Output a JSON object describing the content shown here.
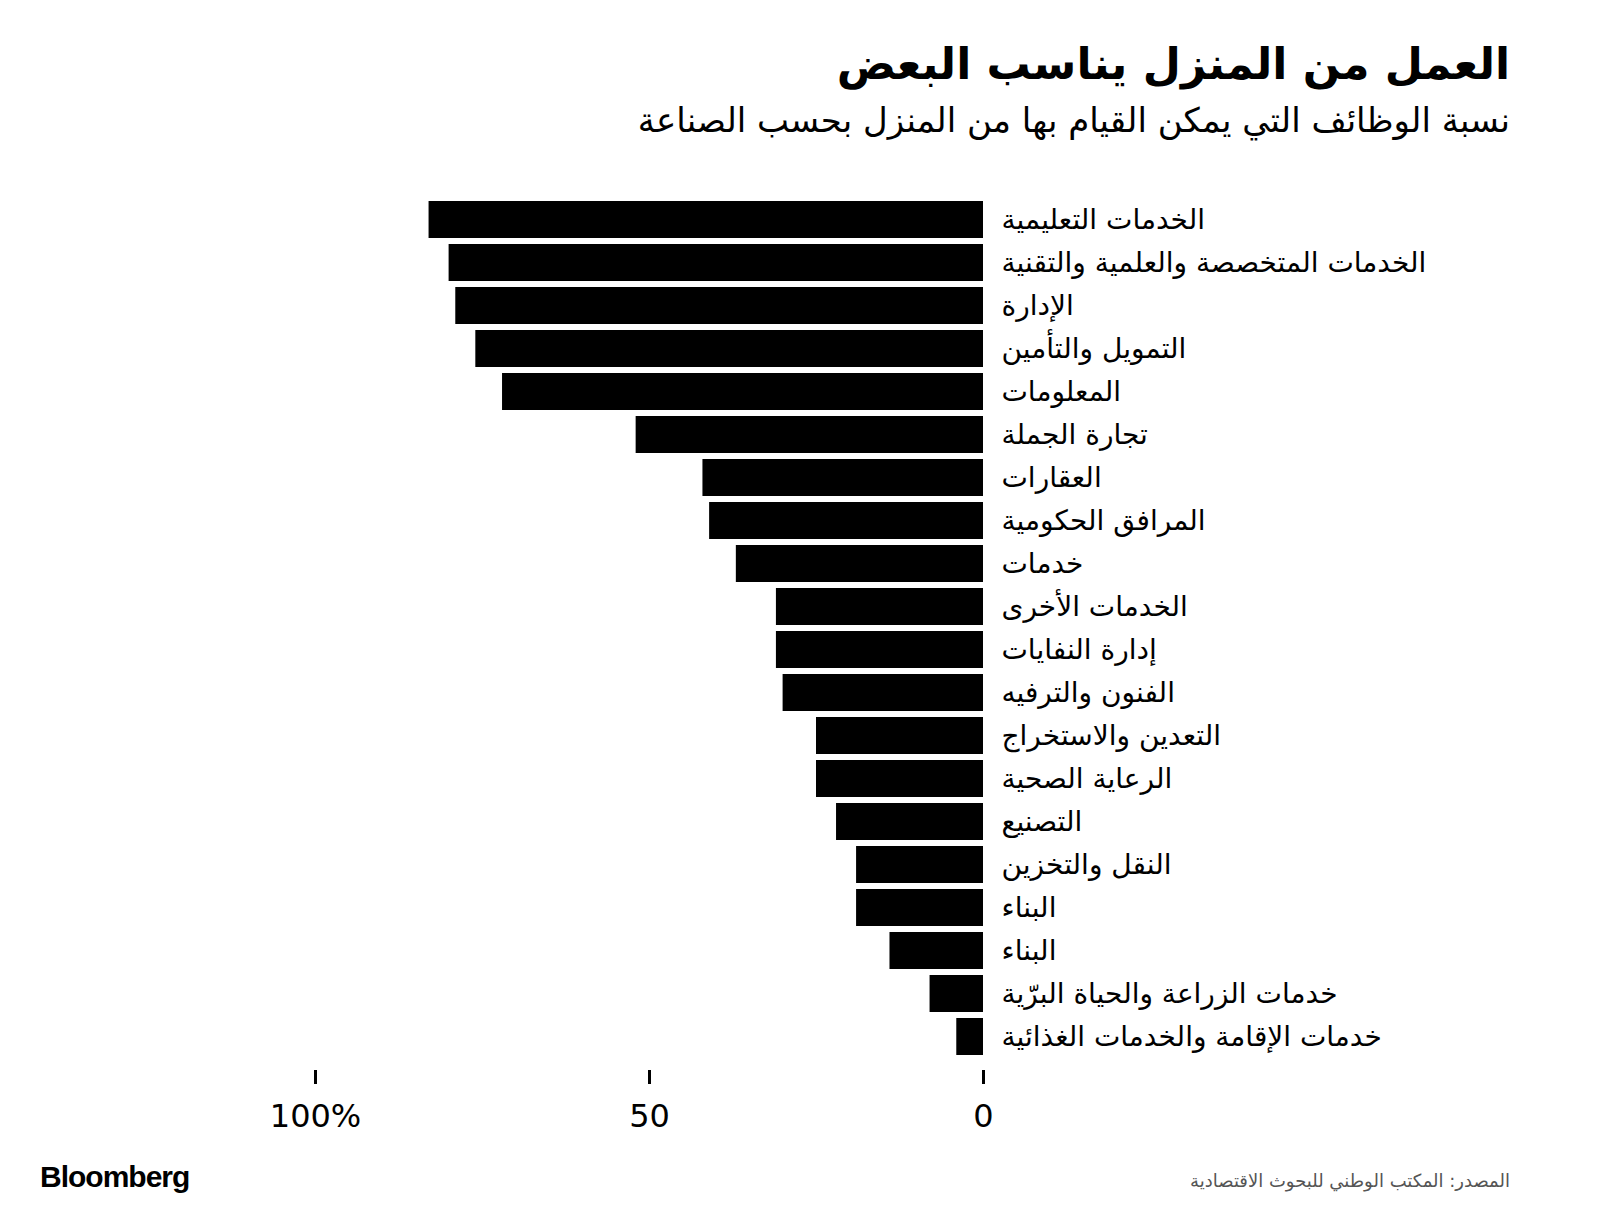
{
  "chart_data": {
    "type": "bar",
    "orientation": "horizontal",
    "title": "العمل من المنزل يناسب البعض",
    "subtitle": "نسبة الوظائف التي يمكن القيام بها من المنزل بحسب الصناعة",
    "source": "المصدر: المكتب الوطني للبحوث الاقتصادية",
    "logo": "Bloomberg",
    "categories": [
      "الخدمات التعليمية",
      "الخدمات المتخصصة والعلمية والتقنية",
      "الإدارة",
      "التمويل والتأمين",
      "المعلومات",
      "تجارة الجملة",
      "العقارات",
      "المرافق الحكومية",
      "خدمات",
      "الخدمات الأخرى",
      "إدارة النفايات",
      "الفنون والترفيه",
      "التعدين والاستخراج",
      "الرعاية الصحية",
      "التصنيع",
      "النقل والتخزين",
      "البناء",
      "البناء",
      "خدمات الزراعة والحياة البرّية",
      "خدمات الإقامة والخدمات الغذائية"
    ],
    "values": [
      83,
      80,
      79,
      76,
      72,
      52,
      42,
      41,
      37,
      31,
      31,
      30,
      25,
      25,
      22,
      19,
      19,
      14,
      8,
      4
    ],
    "color": "#000000",
    "xlim": [
      0,
      100
    ],
    "xticks": [
      0,
      50,
      {
        "value": 100,
        "label": "100%"
      }
    ],
    "grid": false
  }
}
